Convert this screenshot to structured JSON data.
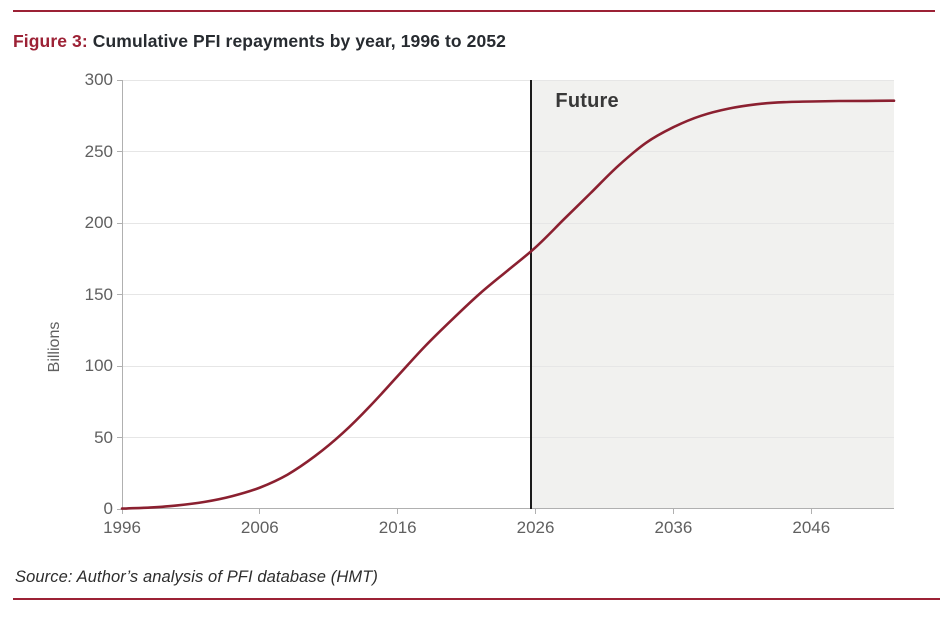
{
  "colors": {
    "accent_red": "#9c2135",
    "curve_red": "#8b2030",
    "title_dark": "#272b30",
    "future_fill": "#f1f1ef",
    "vline_black": "#1b1b1b",
    "gridline": "#e6e6e6",
    "axis_gray": "#b0b0b0",
    "tick_label_gray": "#606060",
    "future_label_gray": "#383838",
    "source_dark": "#2d2d2d"
  },
  "header": {
    "figure_label": "Figure 3:",
    "title_rest": " Cumulative PFI repayments by year, 1996 to 2052"
  },
  "chart_data": {
    "type": "line",
    "title": "Cumulative PFI repayments by year, 1996 to 2052",
    "xlabel": "",
    "ylabel": "Billions",
    "xlim": [
      1996,
      2052
    ],
    "ylim": [
      0,
      300
    ],
    "xticks": [
      1996,
      2006,
      2016,
      2026,
      2036,
      2046
    ],
    "yticks": [
      0,
      50,
      100,
      150,
      200,
      250,
      300
    ],
    "grid": true,
    "legend": false,
    "series": [
      {
        "name": "Cumulative PFI repayments (billions)",
        "color": "#8b2030",
        "x": [
          1996,
          1998,
          2000,
          2002,
          2004,
          2006,
          2008,
          2010,
          2012,
          2014,
          2016,
          2018,
          2020,
          2022,
          2024,
          2026,
          2028,
          2030,
          2032,
          2034,
          2036,
          2038,
          2040,
          2042,
          2044,
          2046,
          2048,
          2050,
          2052
        ],
        "y": [
          0.3,
          1,
          2.5,
          5,
          9,
          15,
          24,
          37,
          53,
          72,
          93,
          114,
          133,
          151,
          167,
          183,
          202,
          221,
          240,
          256,
          267,
          275,
          280,
          283,
          284.5,
          285,
          285.3,
          285.4,
          285.5
        ]
      }
    ],
    "annotations": [
      {
        "type": "vline",
        "x": 2025.7
      },
      {
        "type": "shaded_region",
        "label": "Future",
        "from": 2025.7,
        "to": 2052
      }
    ]
  },
  "footer": {
    "source": "Source: Author’s analysis of PFI database (HMT)"
  }
}
